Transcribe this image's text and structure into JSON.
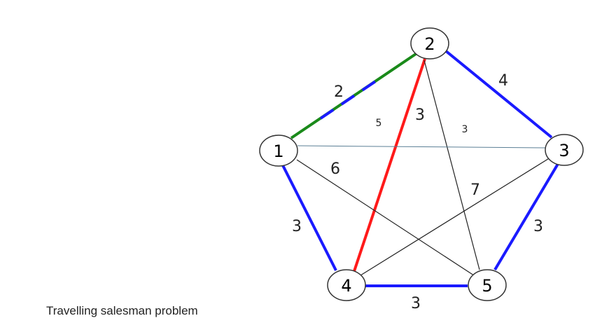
{
  "caption": "Travelling salesman problem",
  "colors": {
    "blue": "#1a1aff",
    "green": "#1a8a1a",
    "red": "#ff1a1a",
    "black": "#222222",
    "steel": "#5b7f95"
  },
  "nodes": [
    {
      "id": "1",
      "label": "1"
    },
    {
      "id": "2",
      "label": "2"
    },
    {
      "id": "3",
      "label": "3"
    },
    {
      "id": "4",
      "label": "4"
    },
    {
      "id": "5",
      "label": "5"
    }
  ],
  "edges": [
    {
      "from": "1",
      "to": "2",
      "weight": "2",
      "color": "green"
    },
    {
      "from": "2",
      "to": "3",
      "weight": "4",
      "color": "blue"
    },
    {
      "from": "3",
      "to": "5",
      "weight": "3",
      "color": "blue"
    },
    {
      "from": "4",
      "to": "5",
      "weight": "3",
      "color": "blue"
    },
    {
      "from": "1",
      "to": "4",
      "weight": "3",
      "color": "blue"
    },
    {
      "from": "2",
      "to": "4",
      "weight": "3",
      "color": "red"
    },
    {
      "from": "1",
      "to": "5",
      "weight": "6",
      "color": "black"
    },
    {
      "from": "3",
      "to": "4",
      "weight": "7",
      "color": "black"
    },
    {
      "from": "2",
      "to": "5",
      "weight": "5",
      "color": "black"
    },
    {
      "from": "1",
      "to": "3",
      "weight": "3",
      "color": "steel"
    }
  ]
}
